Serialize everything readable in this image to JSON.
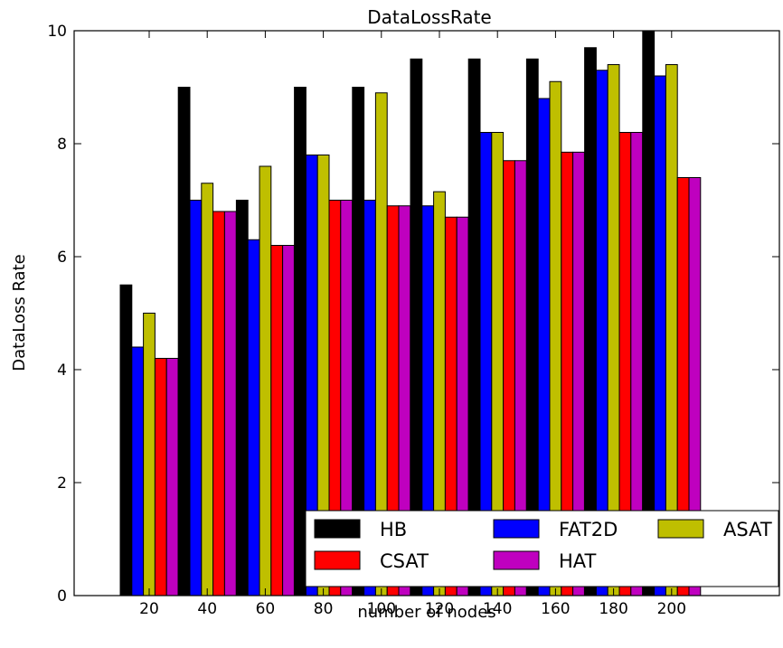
{
  "chart_data": {
    "type": "bar",
    "title": "DataLossRate",
    "xlabel": "number of nodes",
    "ylabel": "DataLoss Rate",
    "categories": [
      "20",
      "40",
      "60",
      "80",
      "100",
      "120",
      "140",
      "160",
      "180",
      "200"
    ],
    "ylim": [
      0,
      10
    ],
    "yticks": [
      "0",
      "2",
      "4",
      "6",
      "8",
      "10"
    ],
    "grid": false,
    "legend_position": "bottom-right",
    "series": [
      {
        "name": "HB",
        "color": "#000000",
        "values": [
          5.5,
          9.0,
          7.0,
          9.0,
          9.0,
          9.5,
          9.5,
          9.5,
          9.7,
          10.0
        ]
      },
      {
        "name": "FAT2D",
        "color": "#0000ff",
        "values": [
          4.4,
          7.0,
          6.3,
          7.8,
          7.0,
          6.9,
          8.2,
          8.8,
          9.3,
          9.2
        ]
      },
      {
        "name": "ASAT",
        "color": "#bfbf00",
        "values": [
          5.0,
          7.3,
          7.6,
          7.8,
          8.9,
          7.15,
          8.2,
          9.1,
          9.4,
          9.4
        ]
      },
      {
        "name": "CSAT",
        "color": "#ff0000",
        "values": [
          4.2,
          6.8,
          6.2,
          7.0,
          6.9,
          6.7,
          7.7,
          7.85,
          8.2,
          7.4
        ]
      },
      {
        "name": "HAT",
        "color": "#bf00bf",
        "values": [
          4.2,
          6.8,
          6.2,
          7.0,
          6.9,
          6.7,
          7.7,
          7.85,
          8.2,
          7.4
        ]
      }
    ]
  }
}
